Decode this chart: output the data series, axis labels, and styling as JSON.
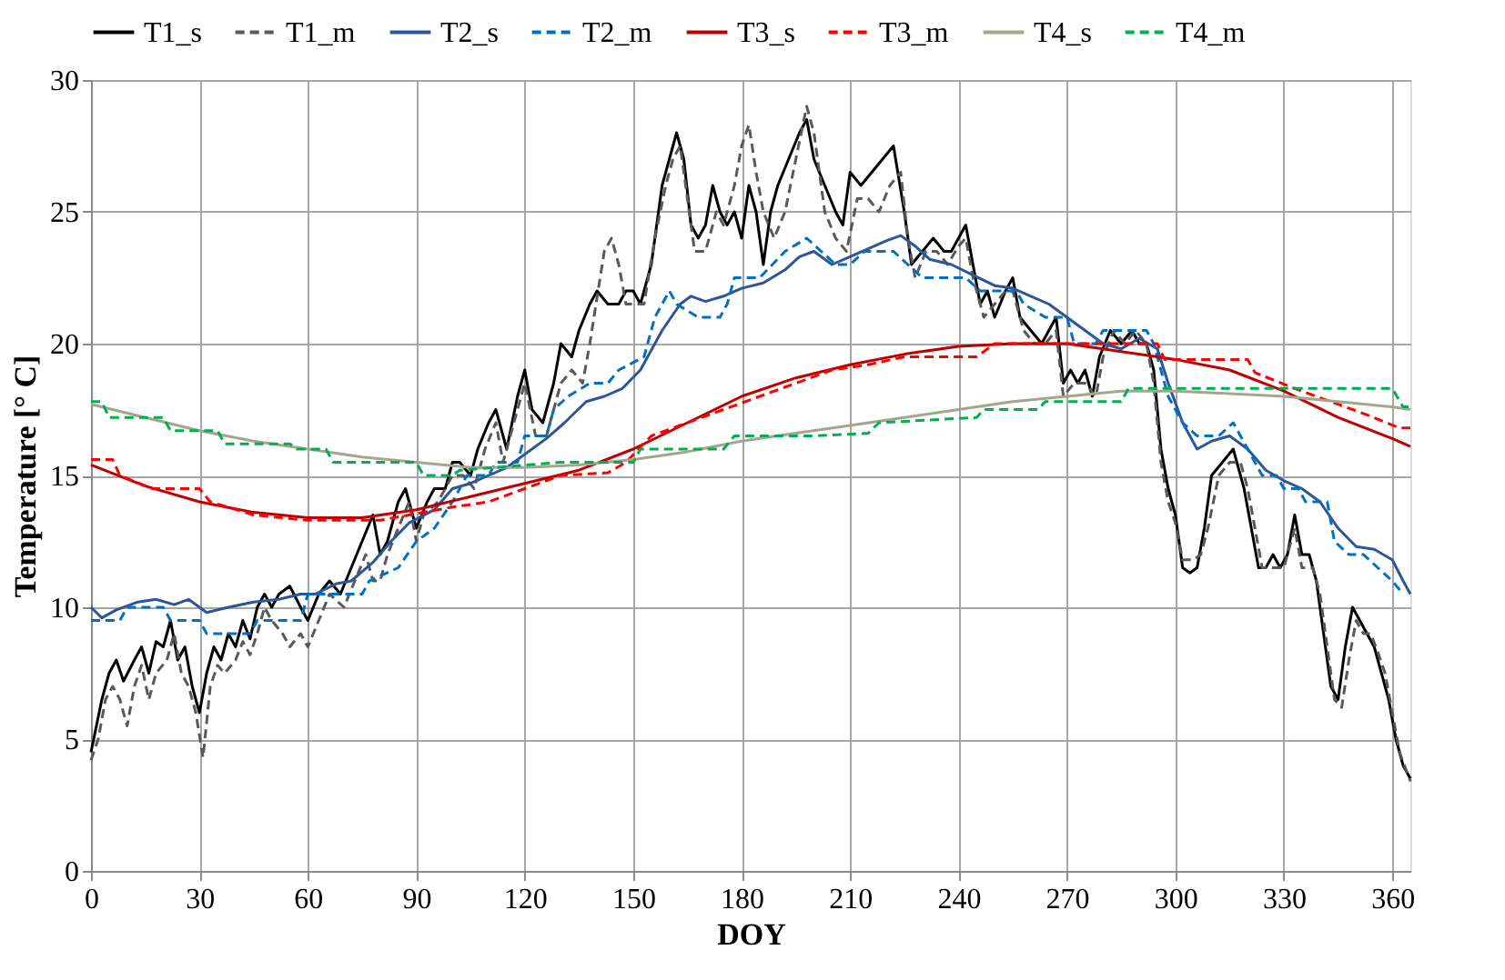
{
  "chart_data": {
    "type": "line",
    "xlabel": "DOY",
    "ylabel": "Temperature [° C]",
    "xlim": [
      0,
      365
    ],
    "xticks": [
      0,
      30,
      60,
      90,
      120,
      150,
      180,
      210,
      240,
      270,
      300,
      330,
      360
    ],
    "ylim": [
      0,
      30
    ],
    "yticks": [
      0,
      5,
      10,
      15,
      20,
      25,
      30
    ],
    "grid": true,
    "legend": "top",
    "marker": "none",
    "series": [
      {
        "name": "T1_s",
        "color": "#000000",
        "line_style": "solid",
        "x": [
          0,
          3,
          5,
          7,
          9,
          12,
          14,
          16,
          18,
          20,
          22,
          24,
          26,
          28,
          30,
          32,
          34,
          36,
          38,
          40,
          42,
          44,
          46,
          48,
          50,
          52,
          55,
          58,
          60,
          63,
          66,
          69,
          72,
          75,
          78,
          80,
          82,
          85,
          87,
          90,
          93,
          95,
          98,
          100,
          102,
          105,
          107,
          110,
          112,
          115,
          118,
          120,
          122,
          125,
          128,
          130,
          133,
          135,
          138,
          140,
          143,
          146,
          148,
          150,
          152,
          155,
          158,
          160,
          162,
          164,
          166,
          168,
          170,
          172,
          174,
          176,
          178,
          180,
          182,
          184,
          186,
          188,
          190,
          193,
          196,
          198,
          200,
          203,
          206,
          208,
          210,
          213,
          216,
          219,
          222,
          225,
          227,
          230,
          233,
          236,
          238,
          240,
          242,
          244,
          246,
          248,
          250,
          253,
          255,
          257,
          260,
          263,
          265,
          267,
          269,
          271,
          273,
          275,
          277,
          279,
          282,
          285,
          288,
          290,
          292,
          294,
          296,
          298,
          300,
          302,
          304,
          306,
          308,
          310,
          313,
          316,
          319,
          321,
          323,
          325,
          327,
          329,
          331,
          333,
          335,
          337,
          339,
          341,
          343,
          345,
          347,
          349,
          351,
          353,
          355,
          357,
          359,
          361,
          363,
          365
        ],
        "values": [
          4.5,
          6.5,
          7.5,
          8,
          7.2,
          8,
          8.5,
          7.5,
          8.7,
          8.5,
          9.5,
          8,
          8.5,
          7,
          6,
          7.5,
          8.5,
          8,
          9,
          8.5,
          9.5,
          8.8,
          10,
          10.5,
          10,
          10.5,
          10.8,
          10,
          9.5,
          10.5,
          11,
          10.5,
          11.5,
          12.5,
          13.5,
          12,
          12.5,
          14,
          14.5,
          13,
          14,
          14.5,
          14.5,
          15.5,
          15.5,
          15,
          16,
          17,
          17.5,
          16,
          18,
          19,
          17.5,
          17,
          18.5,
          20,
          19.5,
          20.5,
          21.5,
          22,
          21.5,
          21.5,
          22,
          22,
          21.5,
          23,
          26,
          27,
          28,
          27,
          24.5,
          24,
          24.5,
          26,
          25,
          24.5,
          25,
          24,
          26,
          25,
          23,
          25,
          26,
          27,
          28,
          28.5,
          27,
          26,
          25,
          24.5,
          26.5,
          26,
          26.5,
          27,
          27.5,
          25,
          23,
          23.5,
          24,
          23.5,
          23.5,
          24,
          24.5,
          23,
          21.5,
          22,
          21,
          22,
          22.5,
          21,
          20.5,
          20,
          20.5,
          21,
          18.5,
          19,
          18.5,
          19,
          18,
          19.5,
          20.5,
          20,
          20.5,
          20,
          20,
          19,
          16,
          14.5,
          13.5,
          11.5,
          11.3,
          11.5,
          13,
          15,
          15.5,
          16,
          14.5,
          13,
          11.5,
          11.5,
          12,
          11.5,
          12,
          13.5,
          12,
          12,
          11,
          9,
          7,
          6.5,
          8.5,
          10,
          9.5,
          9,
          8.5,
          7.5,
          6.5,
          5,
          4,
          3.5
        ]
      },
      {
        "name": "T1_m",
        "color": "#595959",
        "line_style": "dashed",
        "x": [
          0,
          2,
          4,
          6,
          8,
          10,
          12,
          14,
          16,
          18,
          21,
          23,
          25,
          27,
          29,
          31,
          33,
          35,
          37,
          40,
          42,
          44,
          46,
          48,
          50,
          53,
          55,
          58,
          60,
          63,
          66,
          70,
          73,
          76,
          78,
          80,
          82,
          85,
          88,
          90,
          92,
          96,
          100,
          103,
          106,
          109,
          112,
          114,
          117,
          120,
          123,
          126,
          130,
          133,
          136,
          138,
          142,
          144,
          146,
          148,
          150,
          153,
          156,
          159,
          161,
          163,
          165,
          167,
          170,
          173,
          175,
          178,
          180,
          182,
          184,
          186,
          189,
          192,
          195,
          198,
          200,
          203,
          206,
          209,
          212,
          215,
          218,
          221,
          224,
          226,
          228,
          231,
          234,
          237,
          240,
          242,
          244,
          247,
          250,
          253,
          255,
          258,
          261,
          264,
          267,
          269,
          272,
          275,
          278,
          280,
          283,
          286,
          289,
          292,
          294,
          296,
          298,
          300,
          302,
          305,
          307,
          309,
          312,
          315,
          318,
          320,
          322,
          324,
          327,
          330,
          333,
          335,
          338,
          340,
          342,
          344,
          346,
          348,
          350,
          352,
          354,
          356,
          358,
          360,
          362,
          365
        ],
        "values": [
          4.2,
          5,
          6.5,
          7,
          6.5,
          5.5,
          7,
          7.8,
          6.5,
          7.5,
          8,
          9,
          7.5,
          7,
          6,
          4.3,
          7,
          7.8,
          7.5,
          8,
          8.7,
          8.2,
          9,
          10,
          9.5,
          9,
          8.5,
          9,
          8.5,
          9.5,
          10.5,
          10,
          11,
          12,
          11,
          11,
          12,
          13,
          14,
          12.5,
          13.5,
          14,
          15,
          15,
          14.5,
          16,
          17,
          15.5,
          17,
          18.5,
          16.5,
          16.5,
          18.5,
          19,
          18.5,
          20,
          23.5,
          24,
          23,
          21.5,
          21.5,
          21.5,
          24,
          26,
          27,
          27.5,
          25.5,
          23.5,
          23.5,
          25,
          24.5,
          26,
          27.5,
          28.3,
          26.5,
          25,
          24,
          25,
          27,
          29,
          28,
          25,
          24,
          23.5,
          25.5,
          25.5,
          25,
          26,
          26.5,
          24,
          22.5,
          23.5,
          23.5,
          23,
          23.7,
          24,
          22.5,
          21,
          21.5,
          22,
          22,
          20.5,
          20,
          20,
          20.5,
          18,
          18.5,
          18.5,
          18,
          19.5,
          20.5,
          20,
          20.5,
          20,
          18.5,
          15.5,
          14,
          13.2,
          11.8,
          11.8,
          12,
          13,
          15,
          15.5,
          15.5,
          14.5,
          13,
          11.5,
          11.5,
          11.5,
          13,
          11.5,
          11.5,
          10.5,
          8.5,
          6.5,
          6.2,
          8,
          9.5,
          9,
          9,
          8.3,
          7.5,
          6,
          4.5,
          3.4
        ]
      },
      {
        "name": "T2_s",
        "color": "#2e5597",
        "line_style": "solid",
        "x": [
          0,
          3,
          7,
          13,
          18,
          23,
          27,
          32,
          38,
          45,
          52,
          58,
          62,
          68,
          72,
          78,
          83,
          88,
          95,
          100,
          105,
          110,
          115,
          120,
          126,
          131,
          137,
          142,
          147,
          152,
          158,
          163,
          166,
          170,
          175,
          180,
          186,
          192,
          196,
          200,
          205,
          210,
          215,
          220,
          224,
          228,
          232,
          238,
          244,
          250,
          255,
          260,
          265,
          270,
          275,
          280,
          285,
          290,
          295,
          298,
          302,
          306,
          310,
          315,
          320,
          325,
          330,
          335,
          340,
          345,
          350,
          355,
          360,
          363,
          365
        ],
        "values": [
          10,
          9.6,
          9.9,
          10.2,
          10.3,
          10.1,
          10.3,
          9.8,
          10,
          10.2,
          10.3,
          10.5,
          10.5,
          10.9,
          11,
          11.7,
          12.5,
          13.2,
          13.7,
          14.5,
          14.7,
          15,
          15.3,
          15.8,
          16.4,
          17,
          17.8,
          18,
          18.3,
          19,
          20.5,
          21.5,
          21.8,
          21.6,
          21.8,
          22.1,
          22.3,
          22.8,
          23.3,
          23.5,
          23,
          23.3,
          23.6,
          23.9,
          24.1,
          23.7,
          23.2,
          23,
          22.6,
          22.2,
          22.1,
          21.8,
          21.5,
          21,
          20.5,
          20,
          19.8,
          20.2,
          19.8,
          18.5,
          17,
          16,
          16.3,
          16.5,
          16,
          15.2,
          14.8,
          14.5,
          14,
          13,
          12.3,
          12.2,
          11.8,
          11,
          10.5
        ]
      },
      {
        "name": "T2_m",
        "color": "#0070c0",
        "line_style": "dashed",
        "x": [
          0,
          8,
          10,
          20,
          22,
          30,
          32,
          44,
          46,
          58,
          60,
          75,
          77,
          85,
          90,
          95,
          100,
          104,
          110,
          112,
          118,
          120,
          126,
          128,
          132,
          138,
          143,
          146,
          153,
          156,
          160,
          162,
          168,
          174,
          176,
          178,
          185,
          192,
          198,
          202,
          206,
          210,
          214,
          222,
          226,
          230,
          242,
          246,
          256,
          258,
          264,
          270,
          272,
          278,
          280,
          292,
          294,
          298,
          302,
          306,
          312,
          316,
          318,
          324,
          328,
          330,
          334,
          336,
          342,
          344,
          348,
          352,
          356,
          360,
          363
        ],
        "values": [
          9.5,
          9.5,
          10,
          10,
          9.5,
          9.5,
          9,
          9,
          9.5,
          9.5,
          10.5,
          10.5,
          11,
          11.5,
          12.5,
          13,
          14,
          15,
          15,
          15.5,
          15.5,
          16.5,
          16.5,
          17.5,
          18,
          18.5,
          18.5,
          19,
          19.5,
          21,
          22,
          21.5,
          21,
          21,
          21.5,
          22.5,
          22.5,
          23.5,
          24,
          23.5,
          23,
          23,
          23.5,
          23.5,
          23,
          22.5,
          22.5,
          22,
          22,
          21.5,
          21,
          21,
          20,
          20,
          20.5,
          20.5,
          20,
          18,
          17,
          16.5,
          16.5,
          17,
          16.5,
          15,
          15,
          14.5,
          14.5,
          14,
          14,
          12.5,
          12,
          12,
          11.5,
          11,
          10.5
        ]
      },
      {
        "name": "T3_s",
        "color": "#c00000",
        "line_style": "solid",
        "x": [
          0,
          15,
          30,
          45,
          60,
          75,
          90,
          105,
          120,
          135,
          150,
          165,
          180,
          195,
          210,
          225,
          240,
          255,
          270,
          285,
          300,
          315,
          330,
          345,
          360,
          365
        ],
        "values": [
          15.4,
          14.6,
          14,
          13.6,
          13.4,
          13.4,
          13.7,
          14.2,
          14.7,
          15.2,
          16,
          17,
          18,
          18.7,
          19.2,
          19.6,
          19.9,
          20,
          20,
          19.7,
          19.4,
          19,
          18.2,
          17.2,
          16.4,
          16.1
        ]
      },
      {
        "name": "T3_m",
        "color": "#ff0000",
        "line_style": "dashed",
        "x": [
          0,
          6,
          8,
          17,
          30,
          33,
          45,
          60,
          80,
          88,
          100,
          110,
          120,
          130,
          143,
          148,
          155,
          165,
          175,
          185,
          195,
          205,
          215,
          225,
          235,
          245,
          250,
          295,
          297,
          320,
          322,
          333,
          345,
          353,
          362,
          365
        ],
        "values": [
          15.6,
          15.6,
          15,
          14.5,
          14.5,
          14,
          13.5,
          13.3,
          13.3,
          13.5,
          13.8,
          14,
          14.5,
          15,
          15.1,
          15.5,
          16.5,
          17,
          17.5,
          18,
          18.5,
          19,
          19.2,
          19.5,
          19.5,
          19.5,
          20,
          20,
          19.4,
          19.4,
          18.9,
          18.3,
          17.7,
          17.3,
          16.8,
          16.8
        ]
      },
      {
        "name": "T4_s",
        "color": "#a5a58d",
        "line_style": "solid",
        "x": [
          0,
          15,
          30,
          45,
          60,
          75,
          90,
          105,
          120,
          135,
          150,
          165,
          180,
          195,
          210,
          225,
          240,
          255,
          270,
          285,
          300,
          315,
          330,
          345,
          360,
          365
        ],
        "values": [
          17.7,
          17.2,
          16.7,
          16.3,
          16,
          15.7,
          15.5,
          15.3,
          15.3,
          15.4,
          15.6,
          15.9,
          16.3,
          16.6,
          16.9,
          17.2,
          17.5,
          17.8,
          18,
          18.2,
          18.2,
          18.1,
          18,
          17.8,
          17.6,
          17.5
        ]
      },
      {
        "name": "T4_m",
        "color": "#00b050",
        "line_style": "dashed",
        "x": [
          0,
          3,
          5,
          20,
          22,
          35,
          37,
          55,
          57,
          65,
          67,
          90,
          92,
          100,
          102,
          130,
          150,
          152,
          175,
          178,
          200,
          215,
          218,
          245,
          247,
          262,
          264,
          285,
          287,
          300,
          330,
          360,
          363,
          365
        ],
        "values": [
          17.8,
          17.8,
          17.2,
          17.2,
          16.7,
          16.7,
          16.2,
          16.2,
          16,
          16,
          15.5,
          15.5,
          15,
          15,
          15.2,
          15.5,
          15.5,
          16,
          16,
          16.5,
          16.5,
          16.6,
          17,
          17.2,
          17.5,
          17.5,
          17.8,
          17.8,
          18.3,
          18.3,
          18.3,
          18.3,
          17.6,
          17.6
        ]
      }
    ]
  }
}
